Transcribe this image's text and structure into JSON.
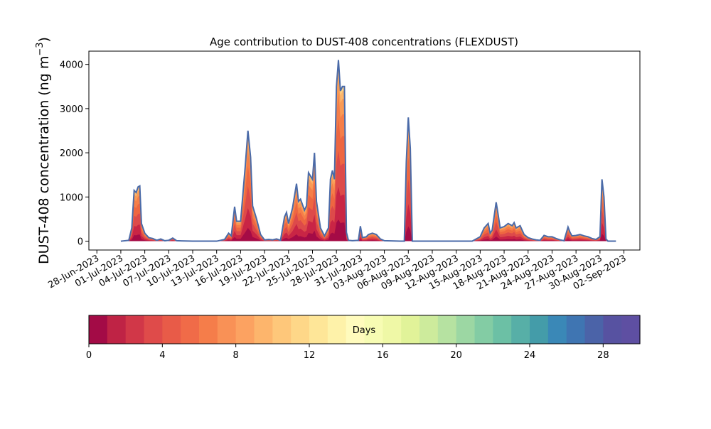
{
  "chart_data": {
    "type": "area",
    "title": "Age contribution to DUST-408 concentrations (FLEXDUST)",
    "ylabel_main": "DUST-408 concentration (ng m",
    "ylabel_sup": "−3",
    "ylabel_close": ")",
    "ylim": [
      -200,
      4300
    ],
    "yticks": [
      0,
      1000,
      2000,
      3000,
      4000
    ],
    "x_range": [
      "2023-06-27",
      "2023-09-04"
    ],
    "x_tick_labels": [
      "28-Jun-2023",
      "01-Jul-2023",
      "04-Jul-2023",
      "07-Jul-2023",
      "10-Jul-2023",
      "13-Jul-2023",
      "16-Jul-2023",
      "19-Jul-2023",
      "22-Jul-2023",
      "25-Jul-2023",
      "28-Jul-2023",
      "31-Jul-2023",
      "03-Aug-2023",
      "06-Aug-2023",
      "09-Aug-2023",
      "12-Aug-2023",
      "15-Aug-2023",
      "18-Aug-2023",
      "21-Aug-2023",
      "24-Aug-2023",
      "27-Aug-2023",
      "30-Aug-2023",
      "02-Sep-2023"
    ],
    "x_tick_dates": [
      "2023-06-28",
      "2023-07-01",
      "2023-07-04",
      "2023-07-07",
      "2023-07-10",
      "2023-07-13",
      "2023-07-16",
      "2023-07-19",
      "2023-07-22",
      "2023-07-25",
      "2023-07-28",
      "2023-07-31",
      "2023-08-03",
      "2023-08-06",
      "2023-08-09",
      "2023-08-12",
      "2023-08-15",
      "2023-08-18",
      "2023-08-21",
      "2023-08-24",
      "2023-08-27",
      "2023-08-30",
      "2023-09-02"
    ],
    "grid": false,
    "total_series": {
      "name": "",
      "color": "#4a6aa8",
      "points": [
        [
          "2023-07-01 00:00",
          0
        ],
        [
          "2023-07-02 00:00",
          20
        ],
        [
          "2023-07-02 09:00",
          300
        ],
        [
          "2023-07-02 16:00",
          1150
        ],
        [
          "2023-07-02 22:00",
          1100
        ],
        [
          "2023-07-03 04:00",
          1230
        ],
        [
          "2023-07-03 09:00",
          1250
        ],
        [
          "2023-07-03 14:00",
          400
        ],
        [
          "2023-07-04 00:00",
          180
        ],
        [
          "2023-07-04 12:00",
          80
        ],
        [
          "2023-07-05 00:00",
          60
        ],
        [
          "2023-07-05 12:00",
          20
        ],
        [
          "2023-07-06 00:00",
          50
        ],
        [
          "2023-07-06 12:00",
          10
        ],
        [
          "2023-07-07 00:00",
          20
        ],
        [
          "2023-07-07 12:00",
          70
        ],
        [
          "2023-07-08 00:00",
          10
        ],
        [
          "2023-07-10 00:00",
          0
        ],
        [
          "2023-07-13 00:00",
          0
        ],
        [
          "2023-07-14 00:00",
          40
        ],
        [
          "2023-07-14 12:00",
          180
        ],
        [
          "2023-07-14 20:00",
          120
        ],
        [
          "2023-07-15 06:00",
          780
        ],
        [
          "2023-07-15 12:00",
          450
        ],
        [
          "2023-07-16 00:00",
          450
        ],
        [
          "2023-07-16 14:00",
          1700
        ],
        [
          "2023-07-16 22:00",
          2500
        ],
        [
          "2023-07-17 06:00",
          1900
        ],
        [
          "2023-07-17 12:00",
          800
        ],
        [
          "2023-07-18 00:00",
          500
        ],
        [
          "2023-07-18 12:00",
          150
        ],
        [
          "2023-07-19 00:00",
          30
        ],
        [
          "2023-07-19 12:00",
          40
        ],
        [
          "2023-07-20 00:00",
          30
        ],
        [
          "2023-07-20 12:00",
          50
        ],
        [
          "2023-07-21 00:00",
          20
        ],
        [
          "2023-07-21 12:00",
          550
        ],
        [
          "2023-07-21 18:00",
          650
        ],
        [
          "2023-07-22 00:00",
          400
        ],
        [
          "2023-07-22 12:00",
          750
        ],
        [
          "2023-07-23 00:00",
          1300
        ],
        [
          "2023-07-23 06:00",
          900
        ],
        [
          "2023-07-23 12:00",
          950
        ],
        [
          "2023-07-24 00:00",
          700
        ],
        [
          "2023-07-24 06:00",
          800
        ],
        [
          "2023-07-24 12:00",
          1550
        ],
        [
          "2023-07-25 00:00",
          1400
        ],
        [
          "2023-07-25 06:00",
          2000
        ],
        [
          "2023-07-25 12:00",
          900
        ],
        [
          "2023-07-26 00:00",
          300
        ],
        [
          "2023-07-26 12:00",
          120
        ],
        [
          "2023-07-27 00:00",
          300
        ],
        [
          "2023-07-27 06:00",
          1400
        ],
        [
          "2023-07-27 12:00",
          1600
        ],
        [
          "2023-07-27 18:00",
          1400
        ],
        [
          "2023-07-28 00:00",
          3500
        ],
        [
          "2023-07-28 06:00",
          4100
        ],
        [
          "2023-07-28 12:00",
          3400
        ],
        [
          "2023-07-28 18:00",
          3500
        ],
        [
          "2023-07-29 00:00",
          3500
        ],
        [
          "2023-07-29 06:00",
          200
        ],
        [
          "2023-07-29 12:00",
          20
        ],
        [
          "2023-07-30 00:00",
          10
        ],
        [
          "2023-07-30 18:00",
          20
        ],
        [
          "2023-07-31 00:00",
          340
        ],
        [
          "2023-07-31 06:00",
          80
        ],
        [
          "2023-07-31 18:00",
          100
        ],
        [
          "2023-08-01 00:00",
          150
        ],
        [
          "2023-08-01 12:00",
          180
        ],
        [
          "2023-08-02 00:00",
          150
        ],
        [
          "2023-08-02 12:00",
          50
        ],
        [
          "2023-08-03 00:00",
          10
        ],
        [
          "2023-08-05 00:00",
          0
        ],
        [
          "2023-08-05 12:00",
          0
        ],
        [
          "2023-08-05 18:00",
          1800
        ],
        [
          "2023-08-06 00:00",
          2800
        ],
        [
          "2023-08-06 06:00",
          2100
        ],
        [
          "2023-08-06 12:00",
          0
        ],
        [
          "2023-08-10 00:00",
          0
        ],
        [
          "2023-08-14 00:00",
          0
        ],
        [
          "2023-08-15 00:00",
          100
        ],
        [
          "2023-08-15 12:00",
          300
        ],
        [
          "2023-08-16 00:00",
          400
        ],
        [
          "2023-08-16 06:00",
          180
        ],
        [
          "2023-08-16 12:00",
          250
        ],
        [
          "2023-08-17 00:00",
          880
        ],
        [
          "2023-08-17 06:00",
          600
        ],
        [
          "2023-08-17 12:00",
          300
        ],
        [
          "2023-08-18 00:00",
          330
        ],
        [
          "2023-08-18 12:00",
          400
        ],
        [
          "2023-08-19 00:00",
          350
        ],
        [
          "2023-08-19 06:00",
          420
        ],
        [
          "2023-08-19 12:00",
          300
        ],
        [
          "2023-08-20 00:00",
          350
        ],
        [
          "2023-08-20 12:00",
          150
        ],
        [
          "2023-08-21 00:00",
          80
        ],
        [
          "2023-08-21 12:00",
          50
        ],
        [
          "2023-08-22 00:00",
          30
        ],
        [
          "2023-08-22 12:00",
          20
        ],
        [
          "2023-08-23 00:00",
          130
        ],
        [
          "2023-08-23 12:00",
          100
        ],
        [
          "2023-08-24 00:00",
          100
        ],
        [
          "2023-08-24 12:00",
          60
        ],
        [
          "2023-08-25 00:00",
          30
        ],
        [
          "2023-08-25 12:00",
          10
        ],
        [
          "2023-08-26 00:00",
          320
        ],
        [
          "2023-08-26 06:00",
          200
        ],
        [
          "2023-08-26 12:00",
          120
        ],
        [
          "2023-08-27 00:00",
          130
        ],
        [
          "2023-08-27 12:00",
          150
        ],
        [
          "2023-08-28 00:00",
          120
        ],
        [
          "2023-08-28 12:00",
          100
        ],
        [
          "2023-08-29 00:00",
          60
        ],
        [
          "2023-08-29 12:00",
          40
        ],
        [
          "2023-08-30 00:00",
          100
        ],
        [
          "2023-08-30 06:00",
          1400
        ],
        [
          "2023-08-30 12:00",
          1000
        ],
        [
          "2023-08-30 18:00",
          50
        ],
        [
          "2023-08-31 00:00",
          0
        ],
        [
          "2023-09-01 00:00",
          0
        ]
      ]
    },
    "fill_bands": {
      "description_none": "",
      "fractions": [
        0.12,
        0.3,
        0.5,
        0.68,
        0.82,
        0.92,
        0.97,
        1.0
      ],
      "colors": [
        "#a50b46",
        "#c92545",
        "#dd4a4a",
        "#ee6641",
        "#f57e49",
        "#f99a55",
        "#fdb66c",
        "#fdd185"
      ]
    },
    "colorbar": {
      "label": "Days",
      "ticks": [
        0,
        4,
        8,
        12,
        16,
        20,
        24,
        28
      ],
      "range": [
        0,
        30
      ],
      "colors": [
        "#a30b46",
        "#bf2345",
        "#d13748",
        "#df4b4a",
        "#e85b48",
        "#f06b48",
        "#f57d4a",
        "#f99156",
        "#fca261",
        "#fdb56c",
        "#fec77a",
        "#fed788",
        "#fee698",
        "#fef2a9",
        "#fffbbd",
        "#f7fcb3",
        "#eff8a6",
        "#e1f399",
        "#cdeb9c",
        "#b6e2a1",
        "#9cd7a3",
        "#83cca4",
        "#6cc0a5",
        "#57afa7",
        "#449ca9",
        "#3a88b7",
        "#3f75b2",
        "#4b63a8",
        "#5752a1",
        "#5e4fa2"
      ]
    }
  }
}
